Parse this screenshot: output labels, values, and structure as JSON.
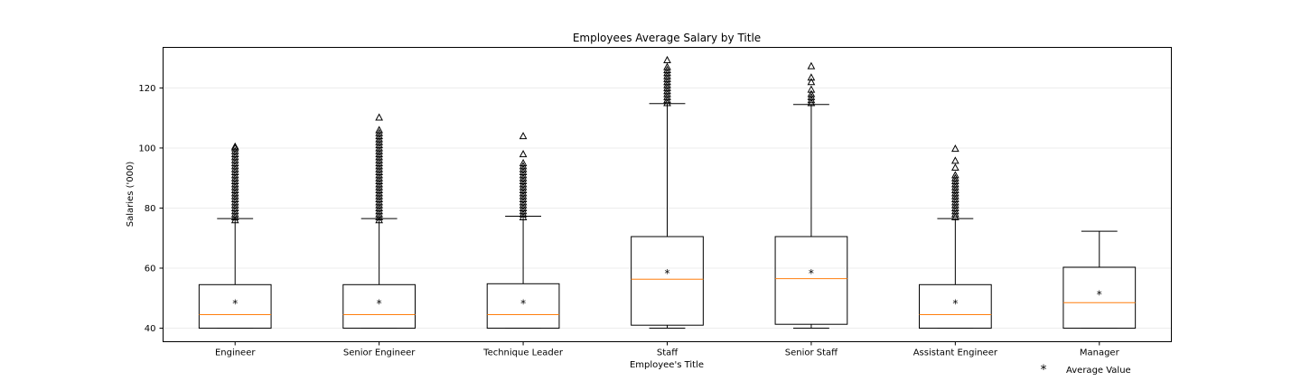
{
  "chart_data": {
    "type": "box",
    "title": "Employees Average Salary by Title",
    "xlabel": "Employee's Title",
    "ylabel": "Salaries ('000)",
    "ylim": [
      35.5,
      133.5
    ],
    "yticks": [
      40,
      60,
      80,
      100,
      120
    ],
    "grid": "horizontal",
    "colors": {
      "box": "#000000",
      "median": "#ff7f0e",
      "grid": "#ececec"
    },
    "legend": {
      "marker": "*",
      "label": "Average Value",
      "placement": "bottom-right"
    },
    "boxes": [
      {
        "category": "Engineer",
        "whisker_low": 40,
        "q1": 40,
        "median": 44.5,
        "q3": 54.5,
        "whisker_high": 76.5,
        "mean": 48.5,
        "fliers": [
          76,
          77,
          78,
          79,
          80,
          81,
          82,
          83,
          84,
          85,
          86,
          87,
          88,
          89,
          90,
          91,
          92,
          93,
          94,
          95,
          96,
          97,
          98,
          99,
          100,
          100.5
        ]
      },
      {
        "category": "Senior Engineer",
        "whisker_low": 40,
        "q1": 40,
        "median": 44.5,
        "q3": 54.5,
        "whisker_high": 76.5,
        "mean": 48.5,
        "fliers": [
          76,
          77,
          78,
          79,
          80,
          81,
          82,
          83,
          84,
          85,
          86,
          87,
          88,
          89,
          90,
          91,
          92,
          93,
          94,
          95,
          96,
          97,
          98,
          99,
          100,
          101,
          102,
          103,
          104,
          105,
          106,
          110.2
        ]
      },
      {
        "category": "Technique Leader",
        "whisker_low": 40,
        "q1": 40,
        "median": 44.5,
        "q3": 54.8,
        "whisker_high": 77.3,
        "mean": 48.5,
        "fliers": [
          77,
          78,
          79,
          80,
          81,
          82,
          83,
          84,
          85,
          86,
          87,
          88,
          89,
          90,
          91,
          92,
          93,
          94,
          95,
          98,
          104
        ]
      },
      {
        "category": "Staff",
        "whisker_low": 40,
        "q1": 41,
        "median": 56.3,
        "q3": 70.5,
        "whisker_high": 114.8,
        "mean": 58.5,
        "fliers": [
          115,
          116,
          117,
          118,
          119,
          120,
          121,
          122,
          123,
          124,
          125,
          126,
          127,
          129.3
        ]
      },
      {
        "category": "Senior Staff",
        "whisker_low": 40,
        "q1": 41.3,
        "median": 56.5,
        "q3": 70.5,
        "whisker_high": 114.5,
        "mean": 58.5,
        "fliers": [
          115,
          116,
          117,
          118,
          119.5,
          122,
          123.5,
          127.3
        ]
      },
      {
        "category": "Assistant Engineer",
        "whisker_low": 40,
        "q1": 40,
        "median": 44.5,
        "q3": 54.5,
        "whisker_high": 76.5,
        "mean": 48.5,
        "fliers": [
          77,
          78,
          79,
          80,
          81,
          82,
          83,
          84,
          85,
          86,
          87,
          88,
          89,
          90,
          91,
          93.5,
          95.8,
          99.8
        ]
      },
      {
        "category": "Manager",
        "whisker_low": 40,
        "q1": 40,
        "median": 48.5,
        "q3": 60.3,
        "whisker_high": 72.3,
        "mean": 51.5,
        "fliers": []
      }
    ]
  }
}
